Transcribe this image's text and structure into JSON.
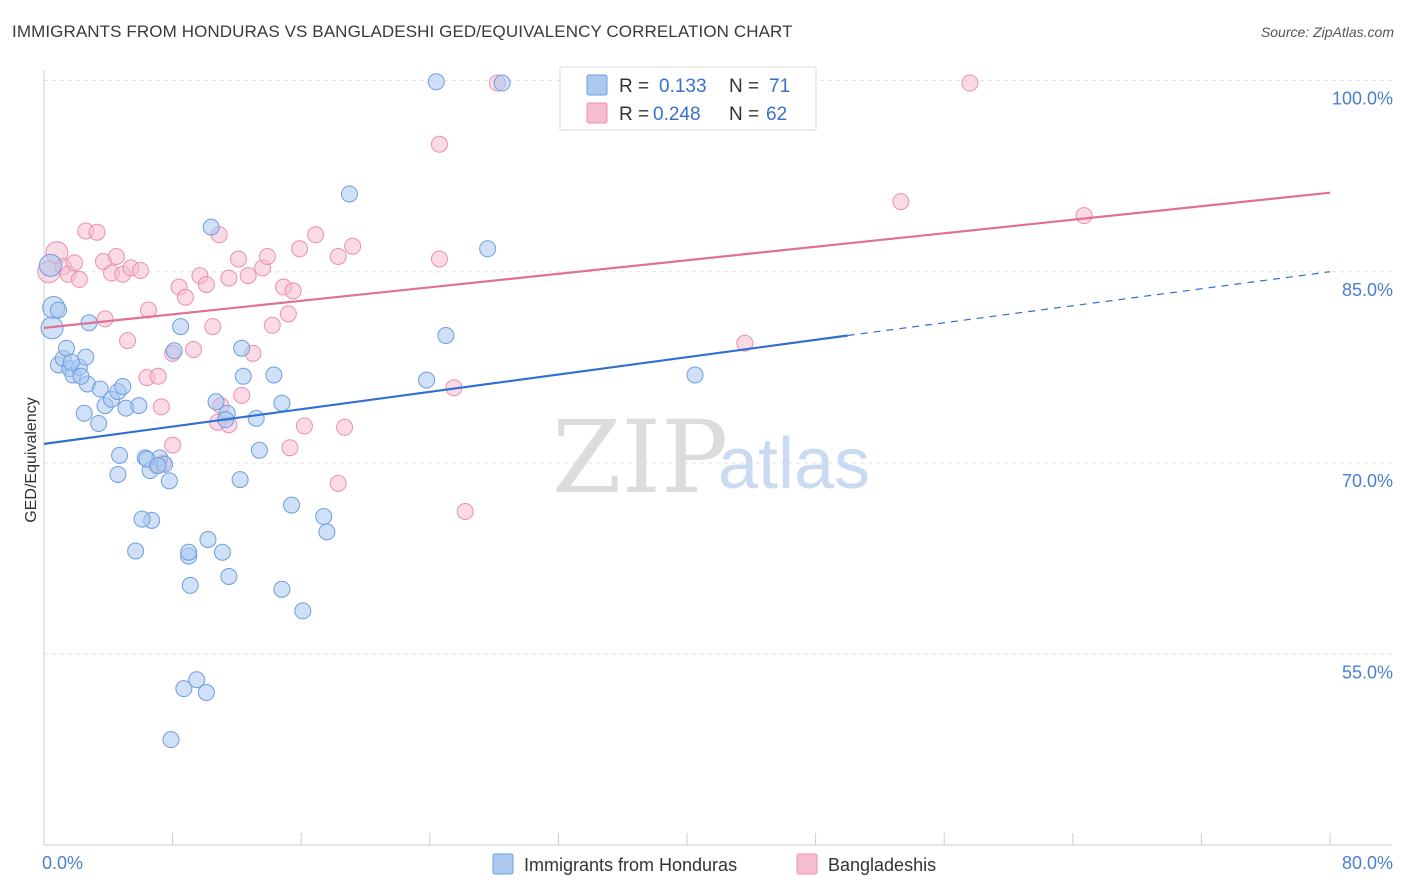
{
  "header": {
    "title": "IMMIGRANTS FROM HONDURAS VS BANGLADESHI GED/EQUIVALENCY CORRELATION CHART",
    "source": "Source: ZipAtlas.com"
  },
  "watermark": {
    "zip": "ZIP",
    "atlas": "atlas"
  },
  "colors": {
    "blue_fill": "#aac8f0",
    "blue_stroke": "#6d9de0",
    "blue_line": "#2f6fd0",
    "pink_fill": "#f6bcd0",
    "pink_stroke": "#ec8fb0",
    "pink_line": "#e0709a",
    "grid": "#e2e2e2",
    "tick_label": "#4a7fd0"
  },
  "legend": {
    "rows": [
      {
        "r_label": "R =",
        "r_value": "0.133",
        "n_label": "N =",
        "n_value": "71"
      },
      {
        "r_label": "R =",
        "r_value": "0.248",
        "n_label": "N =",
        "n_value": "62"
      }
    ]
  },
  "chart_data": {
    "type": "scatter",
    "title": "IMMIGRANTS FROM HONDURAS VS BANGLADESHI GED/EQUIVALENCY CORRELATION CHART",
    "xlabel": "",
    "ylabel": "GED/Equivalency",
    "xlim": [
      0,
      80
    ],
    "ylim": [
      40,
      102
    ],
    "x_tick_labels": [
      "0.0%",
      "80.0%"
    ],
    "y_ticks": [
      55,
      70,
      85,
      100
    ],
    "y_tick_labels": [
      "55.0%",
      "70.0%",
      "85.0%",
      "100.0%"
    ],
    "grid": true,
    "legend_position": "top-center",
    "series": [
      {
        "name": "Immigrants from Honduras",
        "color": "#aac8f0",
        "trend": {
          "x": [
            0,
            50
          ],
          "y": [
            71.5,
            80.0
          ],
          "dashed_extension": {
            "x": [
              50,
              80
            ],
            "y": [
              80.0,
              85.0
            ]
          }
        },
        "points": [
          [
            0.4,
            85.5
          ],
          [
            0.6,
            82.2
          ],
          [
            0.5,
            80.6
          ],
          [
            0.9,
            77.7
          ],
          [
            1.2,
            78.2
          ],
          [
            1.6,
            77.4
          ],
          [
            1.4,
            79.0
          ],
          [
            1.8,
            76.9
          ],
          [
            2.2,
            77.5
          ],
          [
            2.6,
            78.3
          ],
          [
            2.8,
            81.0
          ],
          [
            2.7,
            76.2
          ],
          [
            3.5,
            75.8
          ],
          [
            3.8,
            74.5
          ],
          [
            4.2,
            75.0
          ],
          [
            4.6,
            75.6
          ],
          [
            4.9,
            76.0
          ],
          [
            5.1,
            74.3
          ],
          [
            5.9,
            74.5
          ],
          [
            3.4,
            73.1
          ],
          [
            2.5,
            73.9
          ],
          [
            4.7,
            70.6
          ],
          [
            6.3,
            70.4
          ],
          [
            6.6,
            69.4
          ],
          [
            7.2,
            70.4
          ],
          [
            7.5,
            69.9
          ],
          [
            7.8,
            68.6
          ],
          [
            4.6,
            69.1
          ],
          [
            6.7,
            65.5
          ],
          [
            6.1,
            65.6
          ],
          [
            5.7,
            63.1
          ],
          [
            8.5,
            80.7
          ],
          [
            8.1,
            78.8
          ],
          [
            10.4,
            88.5
          ],
          [
            10.7,
            74.8
          ],
          [
            11.4,
            73.9
          ],
          [
            11.3,
            73.4
          ],
          [
            12.3,
            79.0
          ],
          [
            12.4,
            76.8
          ],
          [
            13.2,
            73.5
          ],
          [
            14.3,
            76.9
          ],
          [
            14.8,
            74.7
          ],
          [
            12.2,
            68.7
          ],
          [
            13.4,
            71.0
          ],
          [
            10.2,
            64.0
          ],
          [
            11.1,
            63.0
          ],
          [
            9.0,
            62.7
          ],
          [
            9.0,
            63.0
          ],
          [
            11.5,
            61.1
          ],
          [
            9.1,
            60.4
          ],
          [
            14.8,
            60.1
          ],
          [
            15.4,
            66.7
          ],
          [
            17.4,
            65.8
          ],
          [
            17.6,
            64.6
          ],
          [
            16.1,
            58.4
          ],
          [
            19.0,
            91.1
          ],
          [
            24.4,
            99.9
          ],
          [
            28.5,
            99.8
          ],
          [
            27.6,
            86.8
          ],
          [
            25.0,
            80.0
          ],
          [
            23.8,
            76.5
          ],
          [
            40.5,
            76.9
          ],
          [
            10.1,
            52.0
          ],
          [
            8.7,
            52.3
          ],
          [
            9.5,
            53.0
          ],
          [
            7.9,
            48.3
          ],
          [
            0.9,
            82.0
          ],
          [
            1.7,
            77.9
          ],
          [
            6.4,
            70.3
          ],
          [
            7.1,
            69.8
          ],
          [
            2.3,
            76.8
          ]
        ]
      },
      {
        "name": "Bangladeshis",
        "color": "#f6bcd0",
        "trend": {
          "x": [
            0,
            80
          ],
          "y": [
            80.6,
            91.2
          ]
        },
        "points": [
          [
            0.3,
            85.0
          ],
          [
            0.8,
            86.5
          ],
          [
            1.2,
            85.4
          ],
          [
            1.5,
            84.8
          ],
          [
            1.9,
            85.7
          ],
          [
            2.2,
            84.4
          ],
          [
            2.6,
            88.2
          ],
          [
            3.3,
            88.1
          ],
          [
            3.7,
            85.8
          ],
          [
            4.2,
            84.9
          ],
          [
            4.5,
            86.2
          ],
          [
            4.9,
            84.8
          ],
          [
            5.4,
            85.3
          ],
          [
            6.0,
            85.1
          ],
          [
            5.2,
            79.6
          ],
          [
            6.5,
            82.0
          ],
          [
            3.8,
            81.3
          ],
          [
            6.4,
            76.7
          ],
          [
            7.1,
            76.8
          ],
          [
            7.3,
            74.4
          ],
          [
            8.0,
            78.6
          ],
          [
            8.4,
            83.8
          ],
          [
            8.8,
            83.0
          ],
          [
            9.3,
            78.9
          ],
          [
            9.7,
            84.7
          ],
          [
            10.1,
            84.0
          ],
          [
            10.5,
            80.7
          ],
          [
            10.9,
            87.9
          ],
          [
            11.5,
            84.5
          ],
          [
            12.1,
            86.0
          ],
          [
            12.7,
            84.7
          ],
          [
            13.0,
            78.6
          ],
          [
            13.6,
            85.3
          ],
          [
            13.9,
            86.2
          ],
          [
            14.2,
            80.8
          ],
          [
            14.9,
            83.8
          ],
          [
            15.2,
            81.7
          ],
          [
            15.5,
            83.5
          ],
          [
            15.9,
            86.8
          ],
          [
            16.9,
            87.9
          ],
          [
            18.3,
            86.2
          ],
          [
            19.2,
            87.0
          ],
          [
            11.0,
            74.5
          ],
          [
            11.5,
            73.0
          ],
          [
            12.3,
            75.3
          ],
          [
            16.2,
            72.9
          ],
          [
            15.3,
            71.2
          ],
          [
            18.7,
            72.8
          ],
          [
            18.3,
            68.4
          ],
          [
            8.0,
            71.4
          ],
          [
            7.4,
            70.0
          ],
          [
            7.0,
            69.8
          ],
          [
            24.6,
            95.0
          ],
          [
            28.2,
            99.8
          ],
          [
            24.6,
            86.0
          ],
          [
            25.5,
            75.9
          ],
          [
            26.2,
            66.2
          ],
          [
            43.6,
            79.4
          ],
          [
            53.3,
            90.5
          ],
          [
            57.6,
            99.8
          ],
          [
            64.7,
            89.4
          ],
          [
            10.8,
            73.2
          ]
        ]
      }
    ]
  },
  "bottom_legend": {
    "items": [
      {
        "label": "Immigrants from Honduras"
      },
      {
        "label": "Bangladeshis"
      }
    ]
  }
}
